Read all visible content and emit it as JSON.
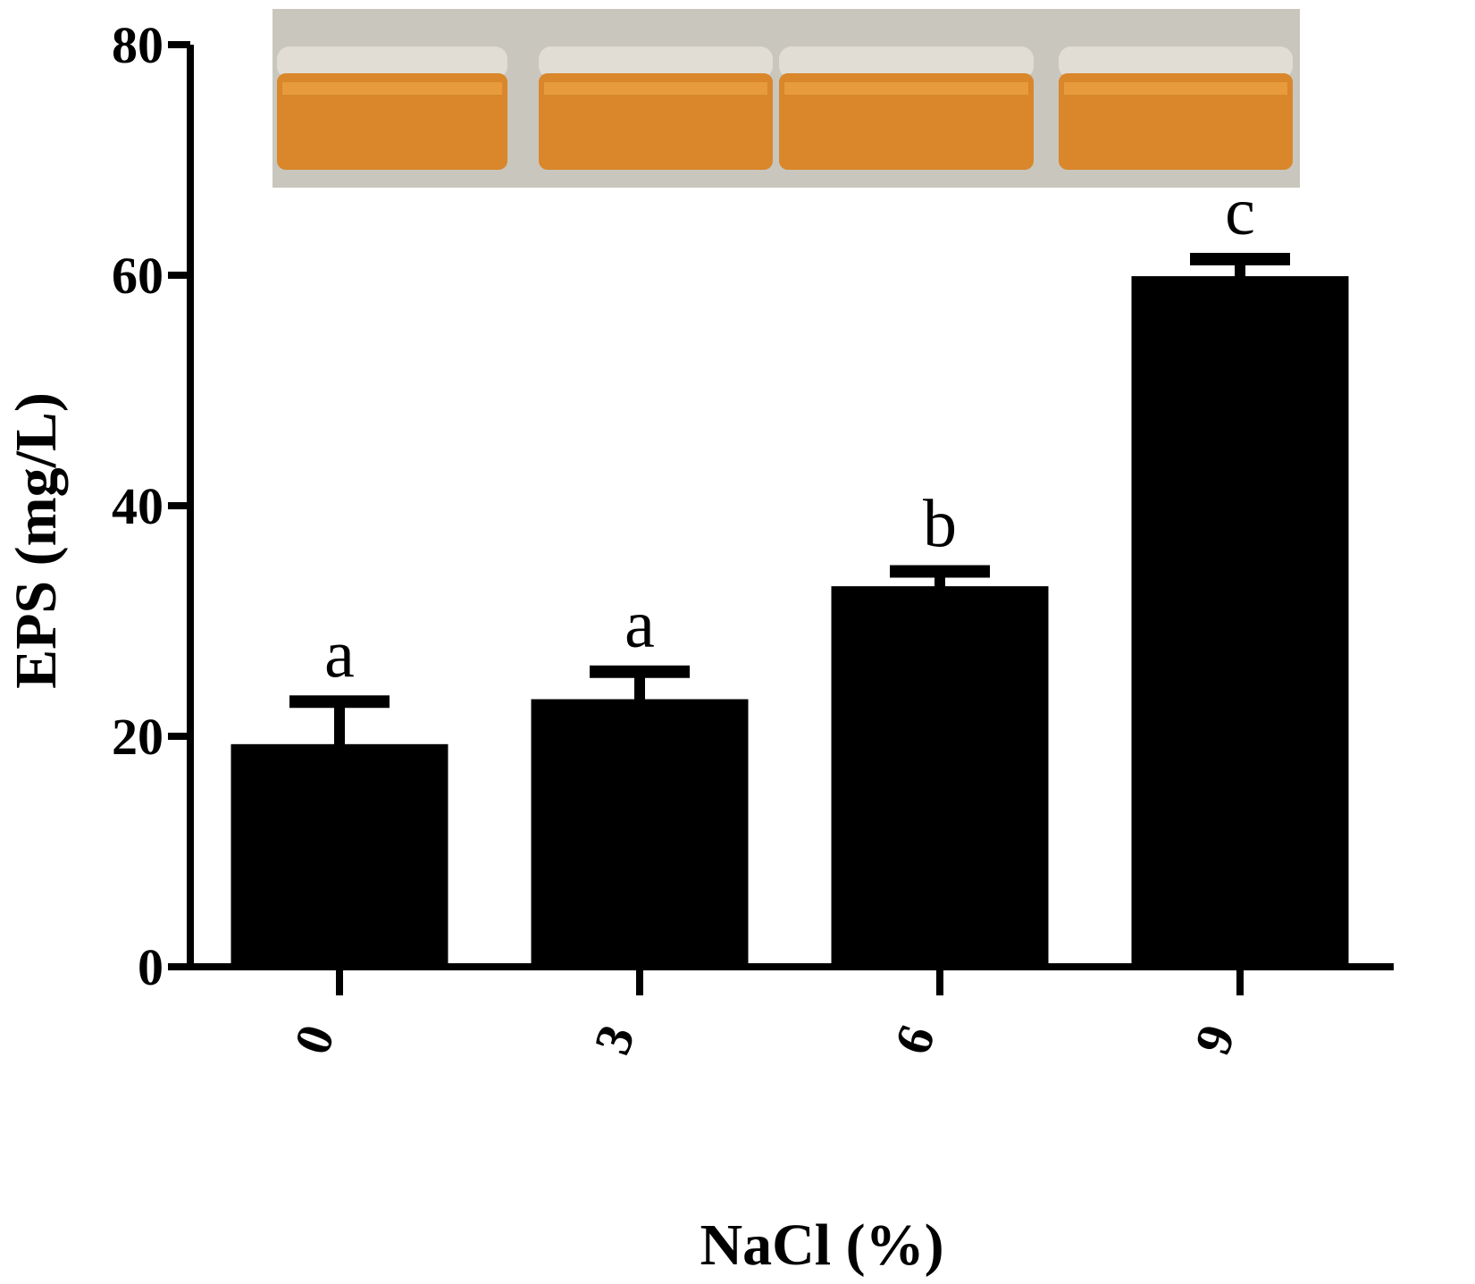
{
  "chart_data": {
    "type": "bar",
    "categories": [
      "0",
      "3",
      "6",
      "9"
    ],
    "values": [
      19.2,
      23.1,
      32.9,
      59.8
    ],
    "errors": [
      3.8,
      2.5,
      1.4,
      1.6
    ],
    "significance_letters": [
      "a",
      "a",
      "b",
      "c"
    ],
    "xlabel": "NaCl (%)",
    "ylabel": "EPS (mg/L)",
    "ylim": [
      0,
      80
    ],
    "yticks": [
      0,
      20,
      40,
      60,
      80
    ],
    "grid": false,
    "bar_color": "#000000",
    "inset_photo": {
      "subject": "four vials of amber EPS culture solution",
      "liquid_color": "#d9872a",
      "background_color": "#c9c6be"
    }
  }
}
